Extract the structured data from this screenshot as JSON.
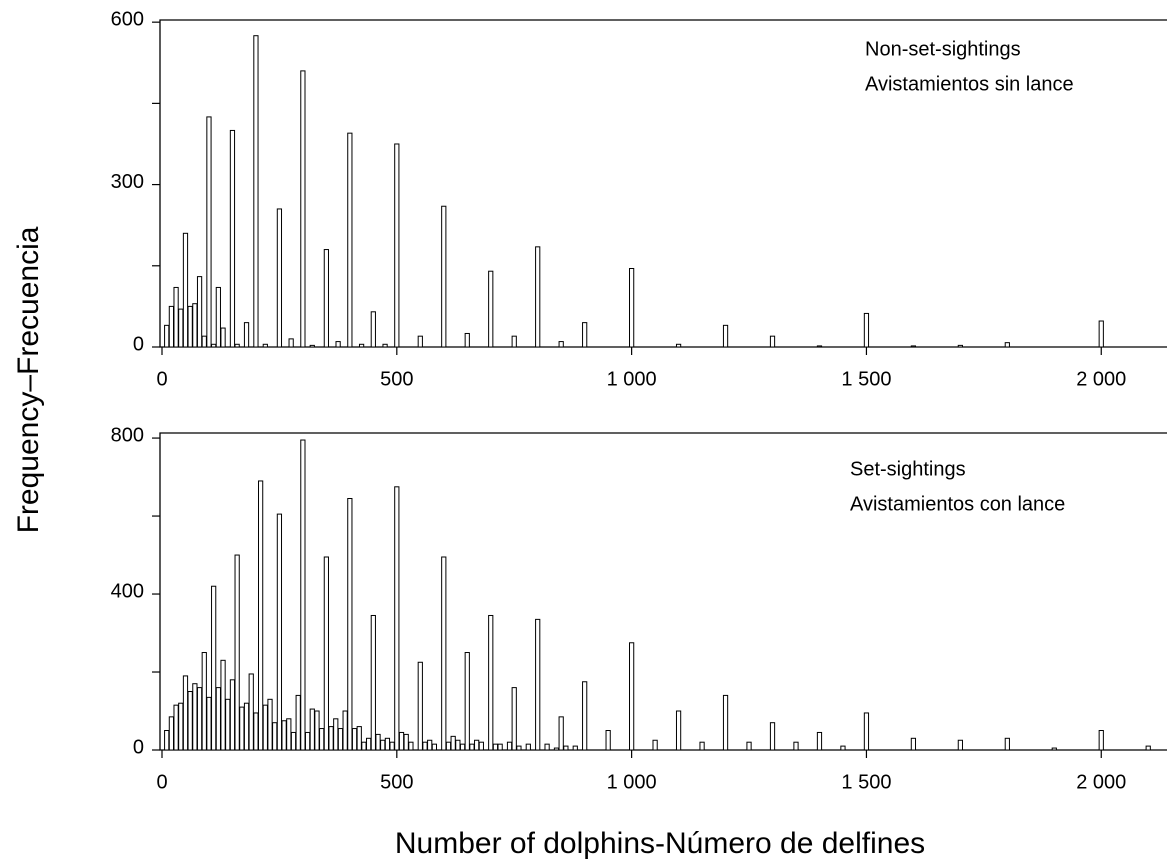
{
  "chart_data": [
    {
      "type": "bar",
      "ylabel": "Frequency–Frecuencia",
      "annotation": [
        "Non-set-sightings",
        "Avistamientos sin lance"
      ],
      "x": [
        10,
        20,
        30,
        40,
        50,
        60,
        70,
        80,
        90,
        100,
        110,
        120,
        130,
        150,
        160,
        180,
        200,
        220,
        250,
        275,
        300,
        320,
        350,
        375,
        400,
        425,
        450,
        475,
        500,
        550,
        600,
        650,
        700,
        750,
        800,
        850,
        900,
        1000,
        1100,
        1200,
        1300,
        1400,
        1500,
        1600,
        1700,
        1800,
        2000
      ],
      "values": [
        40,
        75,
        110,
        70,
        210,
        75,
        80,
        130,
        20,
        425,
        5,
        110,
        35,
        400,
        5,
        45,
        575,
        5,
        255,
        15,
        510,
        3,
        180,
        10,
        395,
        5,
        65,
        5,
        375,
        20,
        260,
        25,
        140,
        20,
        185,
        10,
        45,
        145,
        5,
        40,
        20,
        2,
        62,
        2,
        3,
        8,
        48
      ],
      "xlim": [
        0,
        2140
      ],
      "ylim": [
        0,
        604
      ],
      "xticks": [
        0,
        500,
        {
          "value": 1000,
          "label": "1 000"
        },
        {
          "value": 1500,
          "label": "1 500"
        },
        {
          "value": 2000,
          "label": "2 000"
        }
      ],
      "yticks": [
        0,
        300,
        600
      ],
      "yminorticks": [
        150,
        450
      ]
    },
    {
      "type": "bar",
      "xlabel": "Number of dolphins-Número de delfines",
      "annotation": [
        "Set-sightings",
        "Avistamientos con lance"
      ],
      "x": [
        10,
        20,
        30,
        40,
        50,
        60,
        70,
        80,
        90,
        100,
        110,
        120,
        130,
        140,
        150,
        160,
        170,
        180,
        190,
        200,
        210,
        220,
        230,
        240,
        250,
        260,
        270,
        280,
        290,
        300,
        310,
        320,
        330,
        340,
        350,
        360,
        370,
        380,
        390,
        400,
        410,
        420,
        430,
        440,
        450,
        460,
        470,
        480,
        490,
        500,
        510,
        520,
        530,
        550,
        560,
        570,
        580,
        600,
        610,
        620,
        630,
        640,
        650,
        660,
        670,
        680,
        700,
        710,
        720,
        740,
        750,
        760,
        780,
        800,
        820,
        840,
        850,
        860,
        880,
        900,
        950,
        1000,
        1050,
        1100,
        1150,
        1200,
        1250,
        1300,
        1350,
        1400,
        1450,
        1500,
        1600,
        1700,
        1800,
        1900,
        2000,
        2100
      ],
      "values": [
        50,
        85,
        115,
        120,
        190,
        150,
        170,
        160,
        250,
        135,
        420,
        160,
        230,
        130,
        180,
        500,
        110,
        120,
        195,
        95,
        690,
        115,
        130,
        70,
        605,
        75,
        80,
        45,
        140,
        795,
        45,
        105,
        100,
        55,
        495,
        60,
        80,
        55,
        100,
        645,
        55,
        60,
        20,
        30,
        345,
        40,
        25,
        30,
        20,
        675,
        45,
        40,
        20,
        225,
        20,
        25,
        15,
        495,
        20,
        35,
        25,
        15,
        250,
        15,
        25,
        20,
        345,
        15,
        15,
        20,
        160,
        10,
        15,
        335,
        15,
        5,
        85,
        10,
        10,
        175,
        50,
        275,
        25,
        100,
        20,
        140,
        20,
        70,
        20,
        45,
        10,
        95,
        30,
        25,
        30,
        5,
        50,
        10
      ],
      "xlim": [
        0,
        2140
      ],
      "ylim": [
        0,
        813
      ],
      "xticks": [
        0,
        500,
        {
          "value": 1000,
          "label": "1 000"
        },
        {
          "value": 1500,
          "label": "1 500"
        },
        {
          "value": 2000,
          "label": "2 000"
        }
      ],
      "yticks": [
        0,
        400,
        800
      ],
      "yminorticks": [
        200,
        600
      ]
    }
  ]
}
